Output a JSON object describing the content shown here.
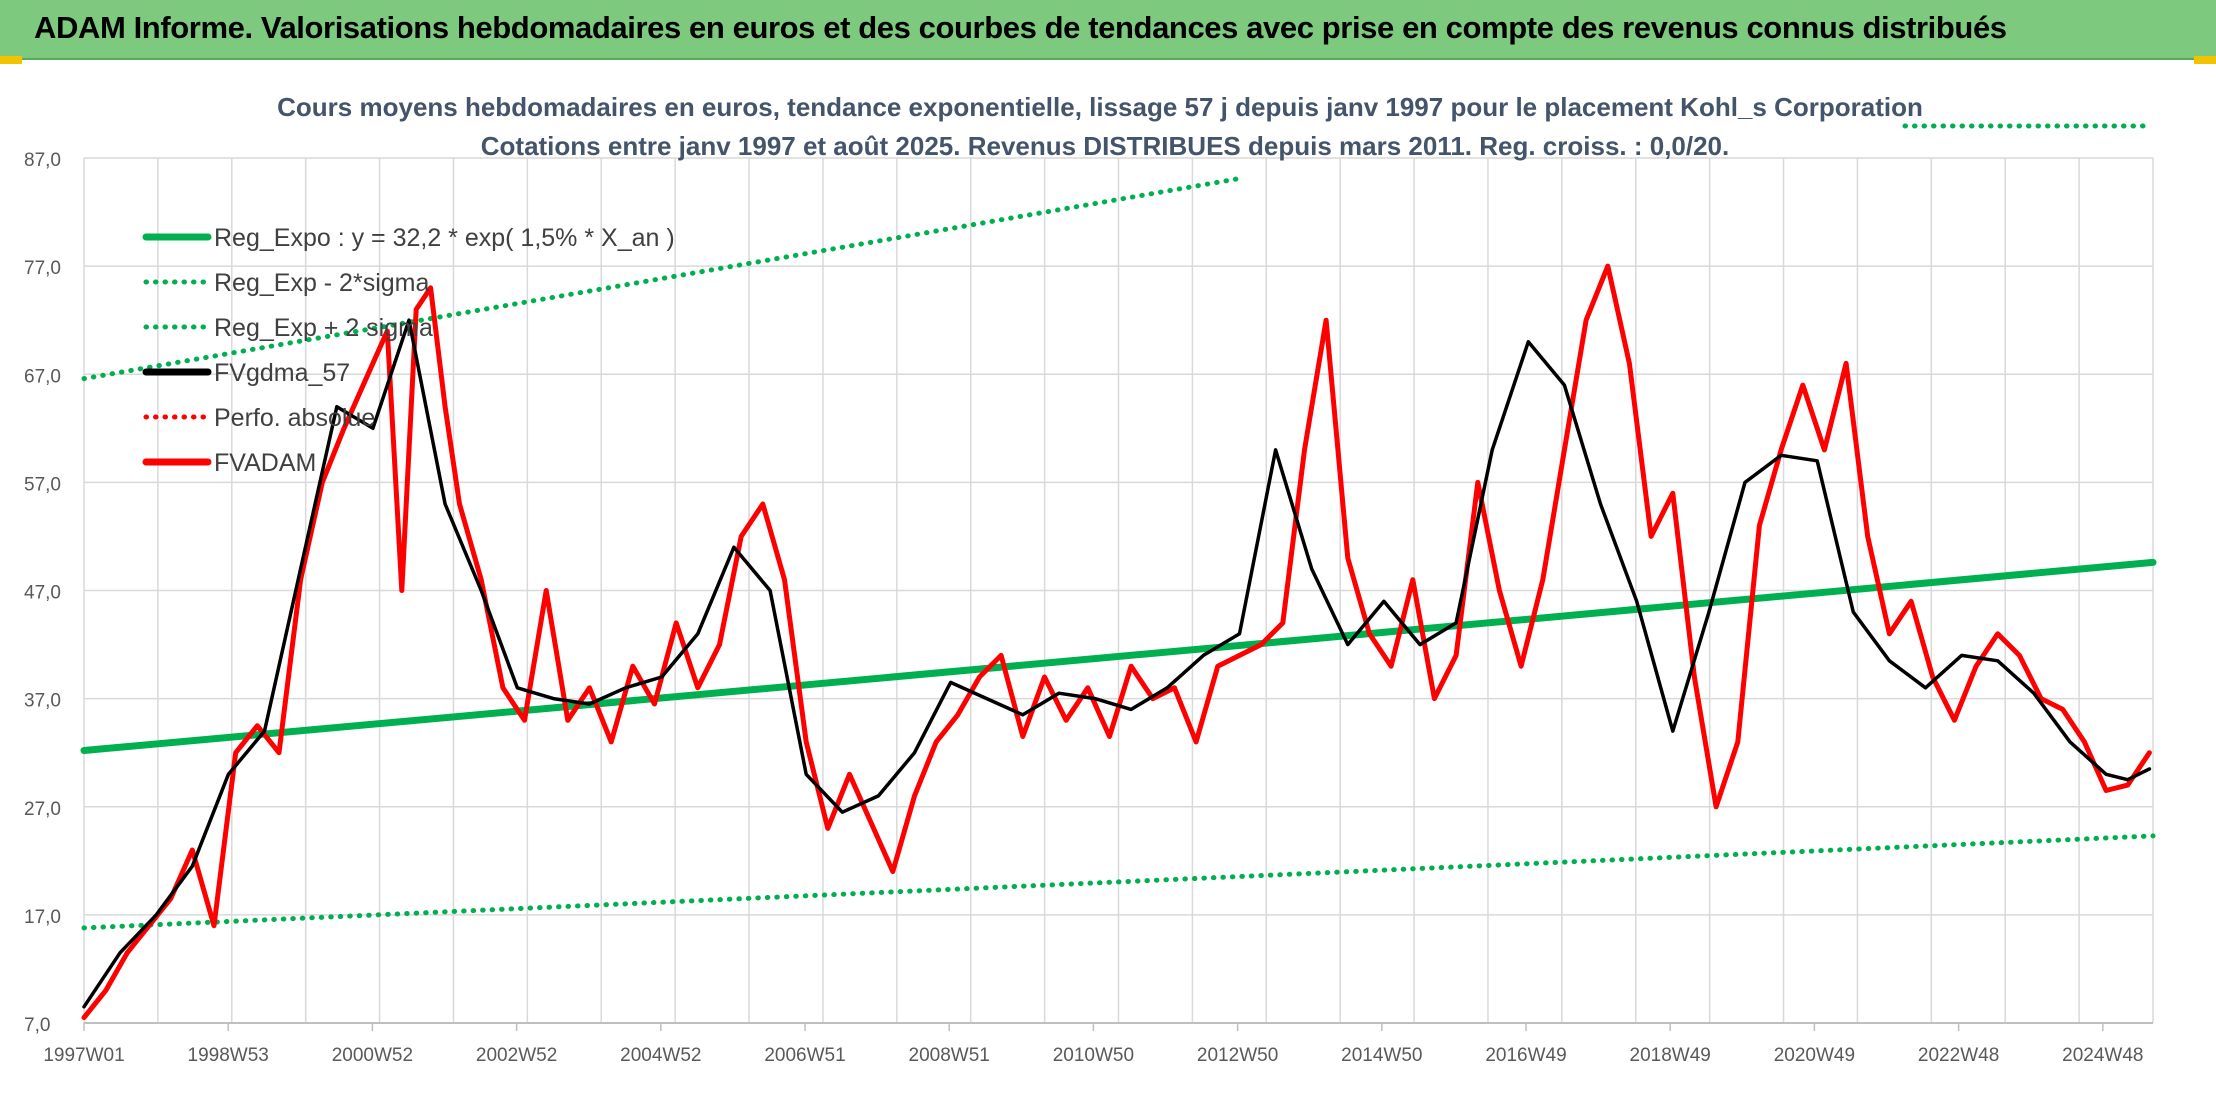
{
  "page": {
    "banner_title": "ADAM Informe. Valorisations hebdomadaires en euros et des courbes de tendances avec prise en compte des revenus connus distribués"
  },
  "colors": {
    "banner": "#7dc97d",
    "regression": "#00b050",
    "smoothed": "#000000",
    "price": "#ff0000",
    "grid": "#d9d9d9"
  },
  "chart_data": {
    "type": "line",
    "title": "Cours moyens hebdomadaires en euros, tendance exponentielle, lissage 57 j depuis janv 1997 pour le placement Kohl_s Corporation",
    "subtitle": "Cotations entre janv 1997 et août 2025. Revenus DISTRIBUES depuis mars 2011. Reg. croiss. : 0,0/20.",
    "x_ticks": [
      "1997W01",
      "1998W53",
      "2000W52",
      "2002W52",
      "2004W52",
      "2006W51",
      "2008W51",
      "2010W50",
      "2012W50",
      "2014W50",
      "2016W49",
      "2018W49",
      "2020W49",
      "2022W48",
      "2024W48"
    ],
    "y_ticks": [
      "7,0",
      "17,0",
      "27,0",
      "37,0",
      "47,0",
      "57,0",
      "67,0",
      "77,0",
      "87,0"
    ],
    "ylim": [
      7,
      87
    ],
    "xlim": [
      1997.0,
      2025.65
    ],
    "grid": true,
    "legend_position": "top-left",
    "legend": [
      {
        "label": "Reg_Expo : y = 32,2 * exp( 1,5% *  X_an )",
        "color": "#00b050",
        "style": "solid"
      },
      {
        "label": "Reg_Exp - 2*sigma",
        "color": "#00b050",
        "style": "dotted"
      },
      {
        "label": "Reg_Exp + 2 sigma",
        "color": "#00b050",
        "style": "dotted"
      },
      {
        "label": "FVgdma_57",
        "color": "#000000",
        "style": "solid"
      },
      {
        "label": "Perfo. absolue",
        "color": "#ff0000",
        "style": "dotted"
      },
      {
        "label": "FVADAM",
        "color": "#ff0000",
        "style": "solid"
      }
    ],
    "series": [
      {
        "name": "Reg_Expo : y = 32,2 * exp( 1,5% *  X_an )",
        "x": [
          1997.0,
          2025.65
        ],
        "values": [
          32.2,
          49.6
        ]
      },
      {
        "name": "Reg_Exp - 2*sigma",
        "x": [
          1997.0,
          2025.65
        ],
        "values": [
          15.8,
          24.3
        ]
      },
      {
        "name": "Reg_Exp + 2 sigma",
        "x": [
          1997.0,
          2013.0
        ],
        "values": [
          66.6,
          85.1
        ]
      },
      {
        "name": "FVgdma_57",
        "x": [
          1997.0,
          1997.5,
          1998.0,
          1998.5,
          1999.0,
          1999.5,
          2000.0,
          2000.5,
          2001.0,
          2001.5,
          2002.0,
          2002.5,
          2003.0,
          2003.5,
          2004.0,
          2004.5,
          2005.0,
          2005.5,
          2006.0,
          2006.5,
          2007.0,
          2007.5,
          2008.0,
          2008.5,
          2009.0,
          2009.5,
          2010.0,
          2010.5,
          2011.0,
          2011.5,
          2012.0,
          2012.5,
          2013.0,
          2013.5,
          2014.0,
          2014.5,
          2015.0,
          2015.5,
          2016.0,
          2016.5,
          2017.0,
          2017.5,
          2018.0,
          2018.5,
          2019.0,
          2019.5,
          2020.0,
          2020.5,
          2021.0,
          2021.5,
          2022.0,
          2022.5,
          2023.0,
          2023.5,
          2024.0,
          2024.5,
          2025.0,
          2025.3,
          2025.6
        ],
        "values": [
          8.5,
          13.5,
          17.0,
          21.5,
          30.0,
          34.0,
          49.0,
          64.0,
          62.0,
          72.0,
          55.0,
          47.0,
          38.0,
          37.0,
          36.5,
          38.0,
          39.0,
          43.0,
          51.0,
          47.0,
          30.0,
          26.5,
          28.0,
          32.0,
          38.5,
          37.0,
          35.5,
          37.5,
          37.0,
          36.0,
          38.0,
          41.0,
          43.0,
          60.0,
          49.0,
          42.0,
          46.0,
          42.0,
          44.0,
          60.0,
          70.0,
          66.0,
          55.0,
          46.0,
          34.0,
          45.0,
          57.0,
          59.5,
          59.0,
          45.0,
          40.5,
          38.0,
          41.0,
          40.5,
          37.5,
          33.0,
          30.0,
          29.5,
          30.5
        ]
      },
      {
        "name": "FVADAM",
        "x": [
          1997.0,
          1997.3,
          1997.6,
          1997.9,
          1998.2,
          1998.5,
          1998.8,
          1999.1,
          1999.4,
          1999.7,
          2000.0,
          2000.3,
          2000.6,
          2000.9,
          2001.2,
          2001.4,
          2001.6,
          2001.8,
          2002.0,
          2002.2,
          2002.5,
          2002.8,
          2003.1,
          2003.4,
          2003.7,
          2004.0,
          2004.3,
          2004.6,
          2004.9,
          2005.2,
          2005.5,
          2005.8,
          2006.1,
          2006.4,
          2006.7,
          2007.0,
          2007.3,
          2007.6,
          2007.9,
          2008.2,
          2008.5,
          2008.8,
          2009.1,
          2009.4,
          2009.7,
          2010.0,
          2010.3,
          2010.6,
          2010.9,
          2011.2,
          2011.5,
          2011.8,
          2012.1,
          2012.4,
          2012.7,
          2013.0,
          2013.3,
          2013.6,
          2013.9,
          2014.2,
          2014.5,
          2014.8,
          2015.1,
          2015.4,
          2015.7,
          2016.0,
          2016.3,
          2016.6,
          2016.9,
          2017.2,
          2017.5,
          2017.8,
          2018.1,
          2018.4,
          2018.7,
          2019.0,
          2019.3,
          2019.6,
          2019.9,
          2020.2,
          2020.5,
          2020.8,
          2021.1,
          2021.4,
          2021.7,
          2022.0,
          2022.3,
          2022.6,
          2022.9,
          2023.2,
          2023.5,
          2023.8,
          2024.1,
          2024.4,
          2024.7,
          2025.0,
          2025.3,
          2025.6
        ],
        "values": [
          7.5,
          10.0,
          13.5,
          16.0,
          18.5,
          23.0,
          16.0,
          32.0,
          34.5,
          32.0,
          48.0,
          57.0,
          62.0,
          66.5,
          71.0,
          47.0,
          73.0,
          75.0,
          64.0,
          55.0,
          48.0,
          38.0,
          35.0,
          47.0,
          35.0,
          38.0,
          33.0,
          40.0,
          36.5,
          44.0,
          38.0,
          42.0,
          52.0,
          55.0,
          48.0,
          33.0,
          25.0,
          30.0,
          25.5,
          21.0,
          28.0,
          33.0,
          35.5,
          39.0,
          41.0,
          33.5,
          39.0,
          35.0,
          38.0,
          33.5,
          40.0,
          37.0,
          38.0,
          33.0,
          40.0,
          41.0,
          42.0,
          44.0,
          60.0,
          72.0,
          50.0,
          43.0,
          40.0,
          48.0,
          37.0,
          41.0,
          57.0,
          47.0,
          40.0,
          48.0,
          60.0,
          72.0,
          77.0,
          68.0,
          52.0,
          56.0,
          39.0,
          27.0,
          33.0,
          53.0,
          60.0,
          66.0,
          60.0,
          68.0,
          52.0,
          43.0,
          46.0,
          39.0,
          35.0,
          40.0,
          43.0,
          41.0,
          37.0,
          36.0,
          33.0,
          28.5,
          29.0,
          32.0
        ]
      }
    ]
  }
}
